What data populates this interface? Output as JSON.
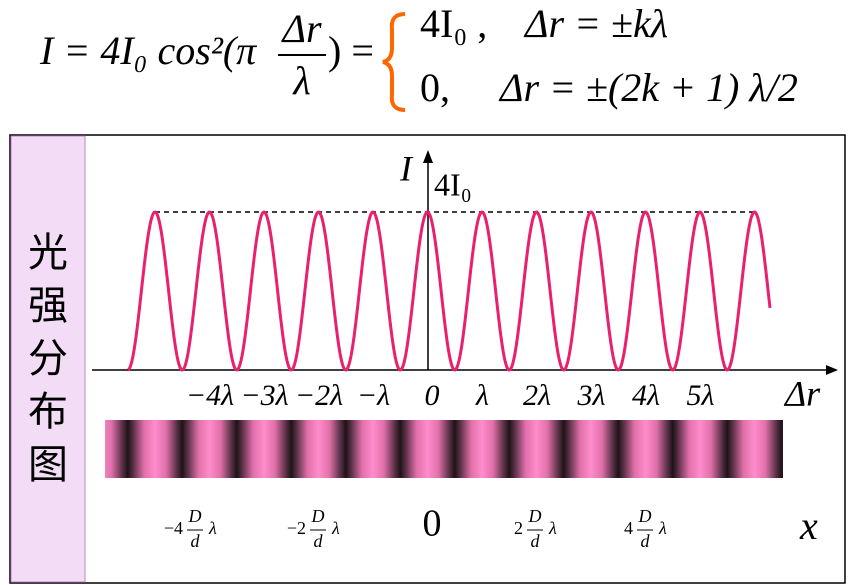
{
  "formula": {
    "lhs": "I = 4I₀ cos²(π",
    "frac_num": "Δr",
    "frac_den": "λ",
    "rhs": ") =",
    "case1": "4I₀ ,",
    "case1_cond": "Δr = ±kλ",
    "case2": "0,",
    "case2_cond": "Δr = ±(2k + 1) λ/2"
  },
  "side_label": [
    "光",
    "强",
    "分",
    "布",
    "图"
  ],
  "axis": {
    "y_label": "I",
    "peak_label": "4I₀",
    "x_label": "Δr",
    "ticks": [
      "−4λ",
      "−3λ",
      "−2λ",
      "−λ",
      "0",
      "λ",
      "2λ",
      "3λ",
      "4λ",
      "5λ"
    ]
  },
  "screen": {
    "labels": [
      {
        "coef": "−4",
        "num": "D",
        "den": "d",
        "unit": "λ"
      },
      {
        "coef": "−2",
        "num": "D",
        "den": "d",
        "unit": "λ"
      },
      {
        "coef": "0"
      },
      {
        "coef": "2",
        "num": "D",
        "den": "d",
        "unit": "λ"
      },
      {
        "coef": "4",
        "num": "D",
        "den": "d",
        "unit": "λ"
      }
    ],
    "axis_label": "x"
  }
}
